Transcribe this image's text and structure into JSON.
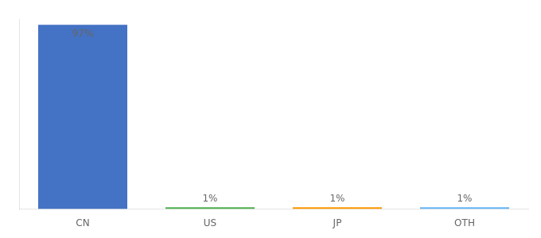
{
  "chart_data": {
    "type": "bar",
    "categories": [
      "CN",
      "US",
      "JP",
      "OTH"
    ],
    "values": [
      97,
      1,
      1,
      1
    ],
    "value_labels": [
      "97%",
      "1%",
      "1%",
      "1%"
    ],
    "colors": [
      "#4472c4",
      "#4caf50",
      "#ff9800",
      "#64b5f6"
    ],
    "ylim": [
      0,
      100
    ],
    "data_labels": true,
    "tick_labels": "x",
    "grid": false
  }
}
